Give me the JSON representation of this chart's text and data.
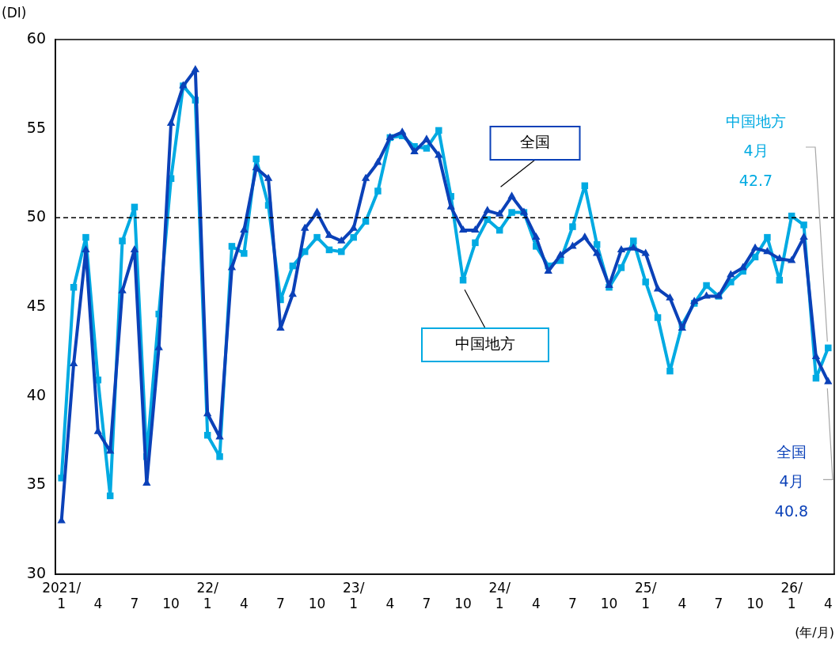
{
  "chart_data": {
    "type": "line",
    "ylabel": "(DI)",
    "xlabel": "(年/月)",
    "categories": [
      "2021/\n1",
      null,
      null,
      "4",
      null,
      null,
      "7",
      null,
      null,
      "10",
      null,
      null,
      "22/\n1",
      null,
      null,
      "4",
      null,
      null,
      "7",
      null,
      null,
      "10",
      null,
      null,
      "23/\n1",
      null,
      null,
      "4",
      null,
      null,
      "7",
      null,
      null,
      "10",
      null,
      null,
      "24/\n1",
      null,
      null,
      "4",
      null,
      null,
      "7",
      null,
      null,
      "10",
      null,
      null,
      "25/\n1",
      null,
      null,
      "4",
      null,
      null,
      "7",
      null,
      null,
      "10",
      null,
      null,
      "26/\n1",
      null,
      null,
      "4"
    ],
    "series": [
      {
        "name": "全国",
        "color": "#0b41b8",
        "marker": "triangle",
        "values": [
          33.0,
          41.8,
          48.2,
          38.0,
          36.9,
          45.9,
          48.2,
          35.1,
          42.7,
          55.3,
          57.4,
          58.3,
          39.0,
          37.7,
          47.2,
          49.3,
          52.8,
          52.2,
          43.8,
          45.7,
          49.4,
          50.3,
          49.0,
          48.7,
          49.4,
          52.2,
          53.1,
          54.5,
          54.8,
          53.7,
          54.4,
          53.5,
          50.6,
          49.3,
          49.3,
          50.4,
          50.2,
          51.2,
          50.3,
          48.9,
          47.0,
          47.9,
          48.4,
          48.9,
          48.0,
          46.2,
          48.2,
          48.3,
          48.0,
          46.0,
          45.5,
          43.8,
          45.3,
          45.6,
          45.6,
          46.8,
          47.2,
          48.3,
          48.1,
          47.7,
          47.6,
          48.9,
          42.2,
          40.8
        ]
      },
      {
        "name": "中国地方",
        "color": "#00aae2",
        "marker": "square",
        "values": [
          35.4,
          46.1,
          48.9,
          40.9,
          34.4,
          48.7,
          50.6,
          36.6,
          44.6,
          52.2,
          57.4,
          56.6,
          37.8,
          36.6,
          48.4,
          48.0,
          53.3,
          50.7,
          45.4,
          47.3,
          48.1,
          48.9,
          48.2,
          48.1,
          48.9,
          49.8,
          51.5,
          54.5,
          54.6,
          54.0,
          53.9,
          54.9,
          51.2,
          46.5,
          48.6,
          49.9,
          49.3,
          50.3,
          50.3,
          48.4,
          47.3,
          47.6,
          49.5,
          51.8,
          48.5,
          46.1,
          47.2,
          48.7,
          46.4,
          44.4,
          41.4,
          44.0,
          45.2,
          46.2,
          45.6,
          46.4,
          47.0,
          47.8,
          48.9,
          46.5,
          50.1,
          49.6,
          41.0,
          42.7
        ]
      }
    ],
    "ylim": [
      30,
      60
    ],
    "yticks": [
      30,
      35,
      40,
      45,
      50,
      55,
      60
    ],
    "ref_lines": [
      {
        "axis": "y",
        "value": 50,
        "color": "#000000",
        "line_style": "dashed"
      }
    ],
    "annotations": [
      "中国地方\n4月\n42.7",
      "全国\n4月\n40.8"
    ],
    "grid": false,
    "legend": false,
    "line_style": "solid"
  }
}
